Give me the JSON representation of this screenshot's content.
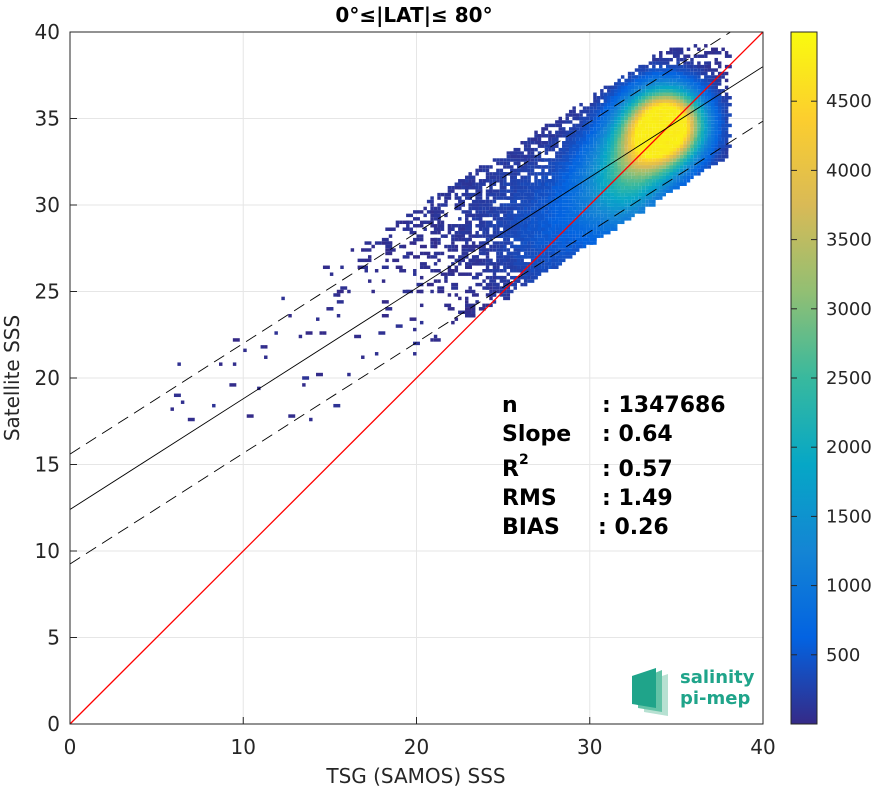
{
  "chart_data": {
    "type": "heatmap",
    "title": "0°≤|LAT|≤ 80°",
    "xlabel": "TSG (SAMOS) SSS",
    "ylabel": "Satellite SSS",
    "xlim": [
      0,
      40
    ],
    "ylim": [
      0,
      40
    ],
    "x_ticks": [
      "0",
      "10",
      "20",
      "30",
      "40"
    ],
    "y_ticks": [
      "0",
      "5",
      "10",
      "15",
      "20",
      "25",
      "30",
      "35",
      "40"
    ],
    "grid": true,
    "colorbar": {
      "ticks": [
        "500",
        "1000",
        "1500",
        "2000",
        "2500",
        "3000",
        "3500",
        "4000",
        "4500"
      ],
      "tick_values": [
        500,
        1000,
        1500,
        2000,
        2500,
        3000,
        3500,
        4000,
        4500
      ],
      "range": [
        0,
        5000
      ],
      "colormap": "parula"
    },
    "density_clusters": [
      {
        "x": 34.5,
        "y": 34.6,
        "sx": 2.0,
        "sy": 2.0,
        "weight": 1.0
      },
      {
        "x": 32.0,
        "y": 31.5,
        "sx": 2.2,
        "sy": 2.8,
        "weight": 0.55
      },
      {
        "x": 27.5,
        "y": 28.0,
        "sx": 3.2,
        "sy": 4.0,
        "weight": 0.3
      },
      {
        "x": 20.0,
        "y": 32.0,
        "sx": 4.0,
        "sy": 3.5,
        "weight": 0.12
      }
    ],
    "lines": {
      "one_to_one": {
        "slope": 1.0,
        "intercept": 0.0,
        "color": "#ff0000",
        "style": "solid"
      },
      "regression": {
        "slope": 0.64,
        "intercept": 12.4,
        "color": "#000000",
        "style": "solid"
      },
      "upper_bound": {
        "slope": 0.64,
        "intercept": 15.6,
        "color": "#000000",
        "style": "dashed"
      },
      "lower_bound": {
        "slope": 0.64,
        "intercept": 9.25,
        "color": "#000000",
        "style": "dashed"
      }
    },
    "stats": {
      "n_label": "n",
      "n_value": ": 1347686",
      "slope_label": "Slope",
      "slope_value": ": 0.64",
      "r2_label": "R",
      "r2_sup": "2",
      "r2_value": ": 0.57",
      "rms_label": "RMS",
      "rms_value": ": 1.49",
      "bias_label": "BIAS",
      "bias_value": ": 0.26"
    }
  },
  "logo": {
    "line1": "salinity",
    "line2": "pi-mep",
    "colors": [
      "#1fa48a",
      "#63c3a7",
      "#b7e1d2"
    ]
  }
}
